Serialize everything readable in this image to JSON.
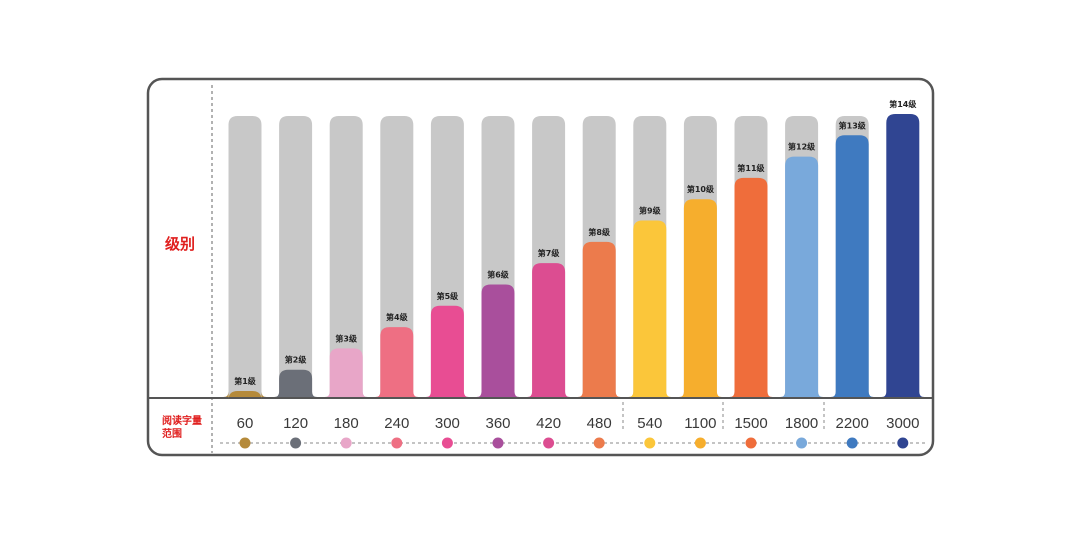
{
  "chart_data": {
    "type": "bar",
    "ylabel": "级别",
    "xlabel_line1": "阅读字量",
    "xlabel_line2": "范围",
    "categories": [
      "60",
      "120",
      "180",
      "240",
      "300",
      "360",
      "420",
      "480",
      "540",
      "1100",
      "1500",
      "1800",
      "2200",
      "3000"
    ],
    "level_labels": [
      "第1级",
      "第2级",
      "第3级",
      "第4级",
      "第5级",
      "第6级",
      "第7级",
      "第8级",
      "第9级",
      "第10级",
      "第11级",
      "第12级",
      "第13级",
      "第14级"
    ],
    "values": [
      1,
      2,
      3,
      4,
      5,
      6,
      7,
      8,
      9,
      10,
      11,
      12,
      13,
      14
    ],
    "ylim": [
      0,
      14
    ],
    "colors": [
      "#b58a3a",
      "#6b6f78",
      "#e8a6c8",
      "#ee6f83",
      "#e84d93",
      "#a94f9c",
      "#dc4d91",
      "#ec7b4c",
      "#fbc63a",
      "#f6ae2d",
      "#ef6d3b",
      "#79a9db",
      "#3f7ac0",
      "#304592"
    ],
    "track_color": "#c8c8c8",
    "grid": false
  }
}
